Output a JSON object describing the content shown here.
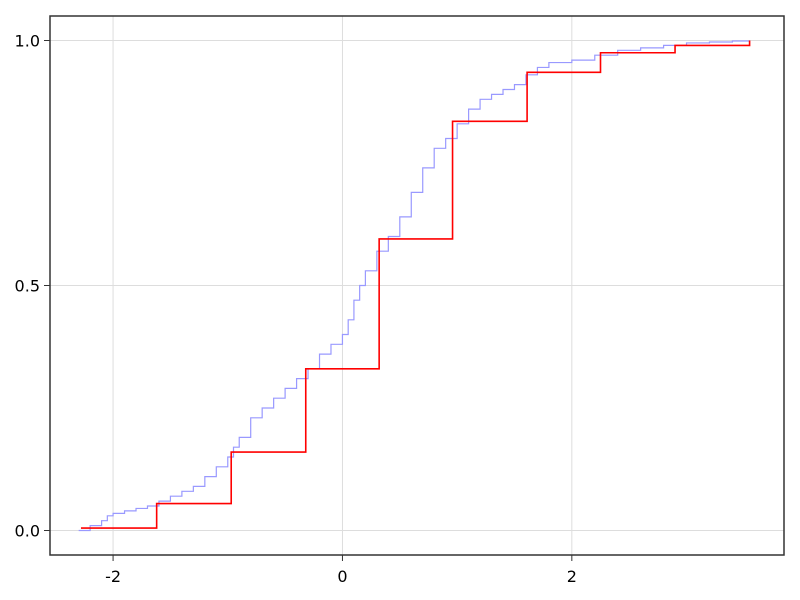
{
  "chart_data": {
    "type": "line",
    "title": "",
    "xlabel": "",
    "ylabel": "",
    "xlim": [
      -2.55,
      3.85
    ],
    "ylim": [
      -0.05,
      1.05
    ],
    "xticks": [
      -2,
      0,
      2
    ],
    "xtick_labels": [
      "-2",
      "0",
      "2"
    ],
    "yticks": [
      0.0,
      0.5,
      1.0
    ],
    "ytick_labels": [
      "0.0",
      "0.5",
      "1.0"
    ],
    "grid": true,
    "legend": "none",
    "series": [
      {
        "style": "step",
        "color": "#9999ff",
        "x": [
          -2.3,
          -2.2,
          -2.1,
          -2.05,
          -2.0,
          -1.9,
          -1.8,
          -1.7,
          -1.6,
          -1.5,
          -1.4,
          -1.3,
          -1.2,
          -1.1,
          -1.0,
          -0.95,
          -0.9,
          -0.8,
          -0.7,
          -0.6,
          -0.5,
          -0.4,
          -0.3,
          -0.2,
          -0.1,
          0.0,
          0.05,
          0.1,
          0.15,
          0.2,
          0.3,
          0.4,
          0.5,
          0.6,
          0.7,
          0.8,
          0.9,
          1.0,
          1.1,
          1.2,
          1.3,
          1.4,
          1.5,
          1.6,
          1.7,
          1.8,
          2.0,
          2.2,
          2.4,
          2.6,
          2.8,
          3.0,
          3.2,
          3.4,
          3.55
        ],
        "y": [
          0.0,
          0.01,
          0.02,
          0.03,
          0.035,
          0.04,
          0.045,
          0.05,
          0.06,
          0.07,
          0.08,
          0.09,
          0.11,
          0.13,
          0.15,
          0.17,
          0.19,
          0.23,
          0.25,
          0.27,
          0.29,
          0.31,
          0.33,
          0.36,
          0.38,
          0.4,
          0.43,
          0.47,
          0.5,
          0.53,
          0.57,
          0.6,
          0.64,
          0.69,
          0.74,
          0.78,
          0.8,
          0.83,
          0.86,
          0.88,
          0.89,
          0.9,
          0.91,
          0.93,
          0.945,
          0.955,
          0.96,
          0.97,
          0.98,
          0.985,
          0.99,
          0.995,
          0.997,
          0.999,
          1.0
        ]
      },
      {
        "style": "step",
        "color": "#ff0000",
        "x": [
          -2.28,
          -1.62,
          -0.97,
          -0.32,
          0.32,
          0.96,
          1.61,
          2.25,
          2.9,
          3.55
        ],
        "y": [
          0.005,
          0.055,
          0.16,
          0.33,
          0.595,
          0.835,
          0.935,
          0.975,
          0.99,
          1.0
        ]
      }
    ]
  }
}
